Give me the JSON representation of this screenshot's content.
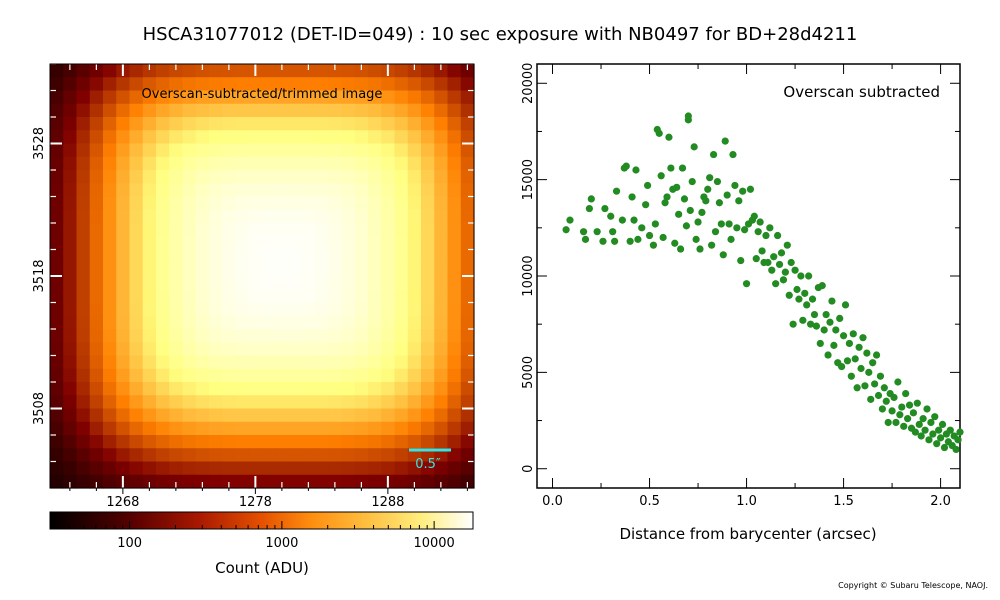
{
  "title": "HSCA31077012 (DET-ID=049) :  10 sec exposure with NB0497 for BD+28d4211",
  "copyright": "Copyright © Subaru Telescope, NAOJ.",
  "colors": {
    "scatter": "#228b22",
    "annotation": "#33e5e5"
  },
  "chart_data": [
    {
      "type": "heatmap",
      "annotation": "Overscan-subtracted/trimmed image",
      "scale_bar_label": "0.5″",
      "x_ticks": [
        "1268",
        "1278",
        "1288"
      ],
      "y_ticks": [
        "3508",
        "3518",
        "3528"
      ],
      "x_tick_values": [
        1268,
        1278,
        1288
      ],
      "y_tick_values": [
        3508,
        3518,
        3528
      ],
      "xlim": [
        1262.5,
        1294.5
      ],
      "ylim": [
        3502,
        3534
      ],
      "peak_pixel": [
        1280,
        3519
      ],
      "colormap": "afmhot (log scale)",
      "colorbar": {
        "label": "Count (ADU)",
        "ticks": [
          "100",
          "1000",
          "10000"
        ],
        "tick_values": [
          100,
          1000,
          10000
        ],
        "range": [
          30,
          18000
        ],
        "scale": "log"
      }
    },
    {
      "type": "scatter",
      "annotation": "Overscan subtracted",
      "xlabel": "Distance from barycenter (arcsec)",
      "ylabel": "",
      "xlim": [
        -0.08,
        2.1
      ],
      "ylim": [
        -1000,
        21000
      ],
      "x_ticks": [
        "0.0",
        "0.5",
        "1.0",
        "1.5",
        "2.0"
      ],
      "x_tick_values": [
        0.0,
        0.5,
        1.0,
        1.5,
        2.0
      ],
      "y_ticks": [
        "0",
        "5000",
        "10000",
        "15000",
        "20000"
      ],
      "y_tick_values": [
        0,
        5000,
        10000,
        15000,
        20000
      ],
      "points": [
        [
          0.07,
          12400
        ],
        [
          0.09,
          12900
        ],
        [
          0.16,
          12300
        ],
        [
          0.17,
          11900
        ],
        [
          0.19,
          13500
        ],
        [
          0.2,
          14000
        ],
        [
          0.23,
          12300
        ],
        [
          0.26,
          11800
        ],
        [
          0.27,
          13500
        ],
        [
          0.3,
          13100
        ],
        [
          0.31,
          12300
        ],
        [
          0.32,
          11800
        ],
        [
          0.33,
          14400
        ],
        [
          0.36,
          12900
        ],
        [
          0.37,
          15600
        ],
        [
          0.38,
          15700
        ],
        [
          0.4,
          11800
        ],
        [
          0.41,
          14100
        ],
        [
          0.42,
          12900
        ],
        [
          0.43,
          15500
        ],
        [
          0.44,
          11900
        ],
        [
          0.46,
          12500
        ],
        [
          0.48,
          13700
        ],
        [
          0.49,
          14700
        ],
        [
          0.5,
          12100
        ],
        [
          0.52,
          11600
        ],
        [
          0.53,
          12700
        ],
        [
          0.54,
          17600
        ],
        [
          0.55,
          17400
        ],
        [
          0.56,
          15200
        ],
        [
          0.57,
          12000
        ],
        [
          0.58,
          13800
        ],
        [
          0.59,
          14100
        ],
        [
          0.6,
          17200
        ],
        [
          0.61,
          15600
        ],
        [
          0.62,
          14500
        ],
        [
          0.63,
          11700
        ],
        [
          0.64,
          14600
        ],
        [
          0.65,
          13200
        ],
        [
          0.66,
          11400
        ],
        [
          0.67,
          15600
        ],
        [
          0.68,
          14000
        ],
        [
          0.69,
          12600
        ],
        [
          0.7,
          18300
        ],
        [
          0.7,
          18100
        ],
        [
          0.71,
          13400
        ],
        [
          0.72,
          14900
        ],
        [
          0.73,
          16700
        ],
        [
          0.74,
          11900
        ],
        [
          0.75,
          12800
        ],
        [
          0.76,
          11400
        ],
        [
          0.77,
          13300
        ],
        [
          0.78,
          14100
        ],
        [
          0.79,
          13900
        ],
        [
          0.8,
          14500
        ],
        [
          0.81,
          15100
        ],
        [
          0.82,
          11600
        ],
        [
          0.83,
          16300
        ],
        [
          0.84,
          12300
        ],
        [
          0.85,
          14900
        ],
        [
          0.86,
          13800
        ],
        [
          0.87,
          12700
        ],
        [
          0.88,
          11100
        ],
        [
          0.89,
          17000
        ],
        [
          0.9,
          14200
        ],
        [
          0.91,
          12700
        ],
        [
          0.92,
          11900
        ],
        [
          0.93,
          16300
        ],
        [
          0.94,
          14700
        ],
        [
          0.95,
          12500
        ],
        [
          0.96,
          13900
        ],
        [
          0.97,
          10800
        ],
        [
          0.98,
          14400
        ],
        [
          0.99,
          12400
        ],
        [
          1.0,
          9600
        ],
        [
          1.01,
          12700
        ],
        [
          1.02,
          14500
        ],
        [
          1.03,
          12900
        ],
        [
          1.04,
          13100
        ],
        [
          1.05,
          10900
        ],
        [
          1.06,
          12300
        ],
        [
          1.07,
          12800
        ],
        [
          1.08,
          11300
        ],
        [
          1.09,
          10700
        ],
        [
          1.1,
          12100
        ],
        [
          1.11,
          10700
        ],
        [
          1.12,
          12500
        ],
        [
          1.13,
          10300
        ],
        [
          1.14,
          11000
        ],
        [
          1.15,
          9600
        ],
        [
          1.16,
          12100
        ],
        [
          1.17,
          10600
        ],
        [
          1.18,
          11200
        ],
        [
          1.19,
          9800
        ],
        [
          1.2,
          10200
        ],
        [
          1.21,
          11600
        ],
        [
          1.22,
          9000
        ],
        [
          1.23,
          10700
        ],
        [
          1.24,
          7500
        ],
        [
          1.25,
          10300
        ],
        [
          1.26,
          9300
        ],
        [
          1.27,
          8800
        ],
        [
          1.28,
          10000
        ],
        [
          1.29,
          7700
        ],
        [
          1.3,
          9100
        ],
        [
          1.31,
          8500
        ],
        [
          1.32,
          10000
        ],
        [
          1.33,
          7500
        ],
        [
          1.34,
          8800
        ],
        [
          1.35,
          8000
        ],
        [
          1.36,
          7400
        ],
        [
          1.37,
          9400
        ],
        [
          1.38,
          6500
        ],
        [
          1.39,
          9500
        ],
        [
          1.4,
          7200
        ],
        [
          1.41,
          8000
        ],
        [
          1.42,
          5900
        ],
        [
          1.43,
          7600
        ],
        [
          1.44,
          8700
        ],
        [
          1.45,
          6400
        ],
        [
          1.46,
          7200
        ],
        [
          1.47,
          5500
        ],
        [
          1.48,
          7800
        ],
        [
          1.49,
          5300
        ],
        [
          1.5,
          6900
        ],
        [
          1.51,
          8500
        ],
        [
          1.52,
          5600
        ],
        [
          1.53,
          6500
        ],
        [
          1.54,
          4800
        ],
        [
          1.55,
          7000
        ],
        [
          1.56,
          5700
        ],
        [
          1.57,
          4200
        ],
        [
          1.58,
          6300
        ],
        [
          1.59,
          5200
        ],
        [
          1.6,
          6800
        ],
        [
          1.61,
          4300
        ],
        [
          1.62,
          6000
        ],
        [
          1.63,
          5000
        ],
        [
          1.64,
          3600
        ],
        [
          1.65,
          5500
        ],
        [
          1.66,
          4400
        ],
        [
          1.67,
          5900
        ],
        [
          1.68,
          3800
        ],
        [
          1.69,
          4800
        ],
        [
          1.7,
          3100
        ],
        [
          1.71,
          4200
        ],
        [
          1.72,
          3500
        ],
        [
          1.73,
          2400
        ],
        [
          1.74,
          3900
        ],
        [
          1.75,
          3000
        ],
        [
          1.76,
          3700
        ],
        [
          1.77,
          2400
        ],
        [
          1.78,
          4500
        ],
        [
          1.79,
          2800
        ],
        [
          1.8,
          3200
        ],
        [
          1.81,
          2200
        ],
        [
          1.82,
          3900
        ],
        [
          1.83,
          2600
        ],
        [
          1.84,
          3300
        ],
        [
          1.85,
          2100
        ],
        [
          1.86,
          2900
        ],
        [
          1.87,
          1900
        ],
        [
          1.88,
          3400
        ],
        [
          1.89,
          2300
        ],
        [
          1.9,
          1700
        ],
        [
          1.91,
          2600
        ],
        [
          1.92,
          2000
        ],
        [
          1.93,
          3100
        ],
        [
          1.94,
          1500
        ],
        [
          1.95,
          2400
        ],
        [
          1.96,
          1800
        ],
        [
          1.97,
          2700
        ],
        [
          1.98,
          1300
        ],
        [
          1.99,
          2000
        ],
        [
          2.0,
          1600
        ],
        [
          2.01,
          2300
        ],
        [
          2.02,
          1100
        ],
        [
          2.03,
          1800
        ],
        [
          2.04,
          1400
        ],
        [
          2.05,
          2000
        ],
        [
          2.06,
          1200
        ],
        [
          2.07,
          1700
        ],
        [
          2.08,
          1000
        ],
        [
          2.09,
          1500
        ],
        [
          2.1,
          1900
        ]
      ]
    }
  ]
}
